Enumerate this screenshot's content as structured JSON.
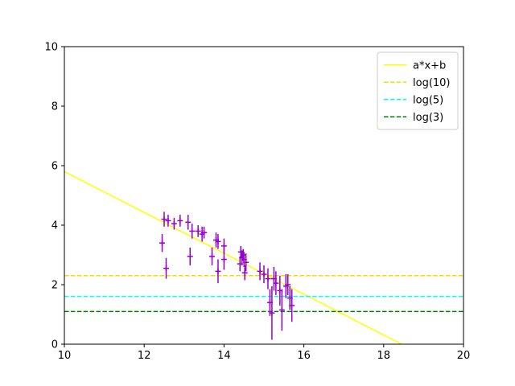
{
  "chart_data": {
    "type": "scatter",
    "title": "",
    "xlabel": "",
    "ylabel": "",
    "xlim": [
      10,
      20
    ],
    "ylim": [
      0,
      10
    ],
    "xticks": [
      10,
      12,
      14,
      16,
      18,
      20
    ],
    "yticks": [
      0,
      2,
      4,
      6,
      8,
      10
    ],
    "grid": false,
    "legend_position": "top-right",
    "lines": [
      {
        "name": "a*x+b",
        "kind": "linear",
        "x": [
          10,
          18.45
        ],
        "y": [
          5.8,
          0
        ],
        "color": "#ffff00",
        "dash": "solid"
      },
      {
        "name": "log(10)",
        "kind": "hline",
        "y": 2.302585,
        "color": "#ffd700",
        "dash": "dashed"
      },
      {
        "name": "log(5)",
        "kind": "hline",
        "y": 1.609438,
        "color": "#00ffff",
        "dash": "dashed"
      },
      {
        "name": "log(3)",
        "kind": "hline",
        "y": 1.098612,
        "color": "#008000",
        "dash": "dashed"
      }
    ],
    "series": [
      {
        "marker": "+",
        "color": "#9400d3",
        "points": [
          {
            "x": 12.45,
            "y": 3.4,
            "yerr": 0.3
          },
          {
            "x": 12.5,
            "y": 4.2,
            "yerr": 0.25
          },
          {
            "x": 12.55,
            "y": 2.55,
            "yerr": 0.35
          },
          {
            "x": 12.6,
            "y": 4.15,
            "yerr": 0.2
          },
          {
            "x": 12.75,
            "y": 4.05,
            "yerr": 0.2
          },
          {
            "x": 12.9,
            "y": 4.15,
            "yerr": 0.2
          },
          {
            "x": 13.1,
            "y": 4.1,
            "yerr": 0.25
          },
          {
            "x": 13.15,
            "y": 2.95,
            "yerr": 0.3
          },
          {
            "x": 13.2,
            "y": 3.8,
            "yerr": 0.25
          },
          {
            "x": 13.35,
            "y": 3.8,
            "yerr": 0.2
          },
          {
            "x": 13.45,
            "y": 3.7,
            "yerr": 0.25
          },
          {
            "x": 13.5,
            "y": 3.75,
            "yerr": 0.2
          },
          {
            "x": 13.7,
            "y": 2.95,
            "yerr": 0.3
          },
          {
            "x": 13.8,
            "y": 3.5,
            "yerr": 0.25
          },
          {
            "x": 13.85,
            "y": 3.45,
            "yerr": 0.25
          },
          {
            "x": 13.85,
            "y": 2.45,
            "yerr": 0.4
          },
          {
            "x": 14.0,
            "y": 3.3,
            "yerr": 0.25
          },
          {
            "x": 14.0,
            "y": 2.85,
            "yerr": 0.35
          },
          {
            "x": 14.4,
            "y": 2.7,
            "yerr": 0.25
          },
          {
            "x": 14.42,
            "y": 3.1,
            "yerr": 0.2
          },
          {
            "x": 14.45,
            "y": 2.9,
            "yerr": 0.25
          },
          {
            "x": 14.48,
            "y": 3.0,
            "yerr": 0.2
          },
          {
            "x": 14.5,
            "y": 2.85,
            "yerr": 0.25
          },
          {
            "x": 14.52,
            "y": 2.4,
            "yerr": 0.25
          },
          {
            "x": 14.55,
            "y": 2.75,
            "yerr": 0.3
          },
          {
            "x": 14.9,
            "y": 2.45,
            "yerr": 0.3
          },
          {
            "x": 15.0,
            "y": 2.35,
            "yerr": 0.3
          },
          {
            "x": 15.1,
            "y": 2.2,
            "yerr": 0.35
          },
          {
            "x": 15.15,
            "y": 1.4,
            "yerr": 0.45
          },
          {
            "x": 15.2,
            "y": 1.05,
            "yerr": 0.9
          },
          {
            "x": 15.25,
            "y": 2.2,
            "yerr": 0.4
          },
          {
            "x": 15.3,
            "y": 2.05,
            "yerr": 0.4
          },
          {
            "x": 15.4,
            "y": 1.8,
            "yerr": 0.5
          },
          {
            "x": 15.45,
            "y": 1.15,
            "yerr": 0.7
          },
          {
            "x": 15.55,
            "y": 1.95,
            "yerr": 0.4
          },
          {
            "x": 15.6,
            "y": 2.0,
            "yerr": 0.35
          },
          {
            "x": 15.65,
            "y": 1.55,
            "yerr": 0.4
          },
          {
            "x": 15.7,
            "y": 1.3,
            "yerr": 0.55
          }
        ]
      }
    ]
  }
}
